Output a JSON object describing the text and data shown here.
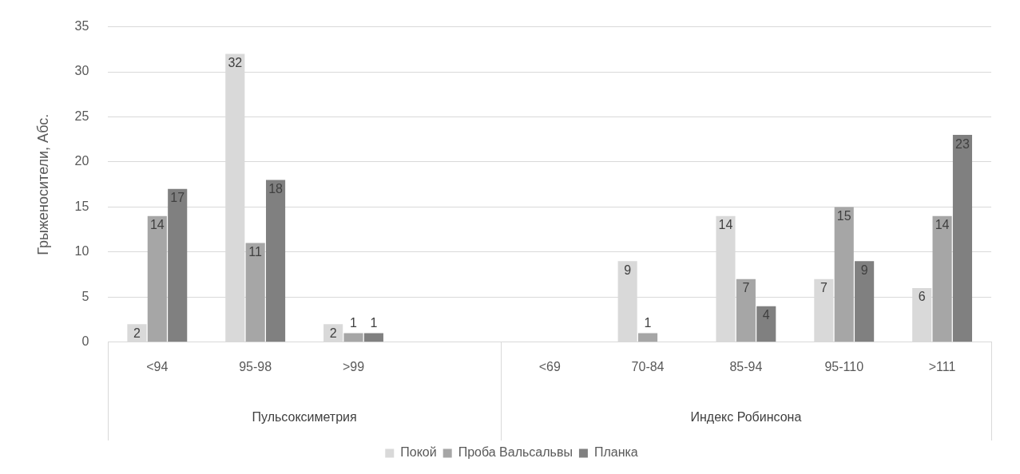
{
  "chart_data": {
    "type": "bar",
    "ylabel": "Грыженосители, Абс.",
    "categories": [
      "<94",
      "95-98",
      ">99",
      null,
      "<69",
      "70-84",
      "85-94",
      "95-110",
      ">111"
    ],
    "series": [
      {
        "name": "Покой",
        "color": "#d9d9d9",
        "values": [
          2,
          32,
          2,
          null,
          null,
          9,
          14,
          7,
          6
        ]
      },
      {
        "name": "Проба Вальсальвы",
        "color": "#a6a6a6",
        "values": [
          14,
          11,
          1,
          null,
          null,
          1,
          7,
          15,
          14
        ]
      },
      {
        "name": "Планка",
        "color": "#808080",
        "values": [
          17,
          18,
          1,
          null,
          null,
          null,
          4,
          9,
          23
        ]
      }
    ],
    "ylim": [
      0,
      35
    ],
    "yticks": [
      0,
      5,
      10,
      15,
      20,
      25,
      30,
      35
    ],
    "grid": "y",
    "legend": "bottom",
    "data_labels": true,
    "annotations": [
      "Пульсоксиметрия",
      "Индекс Робинсона"
    ]
  }
}
